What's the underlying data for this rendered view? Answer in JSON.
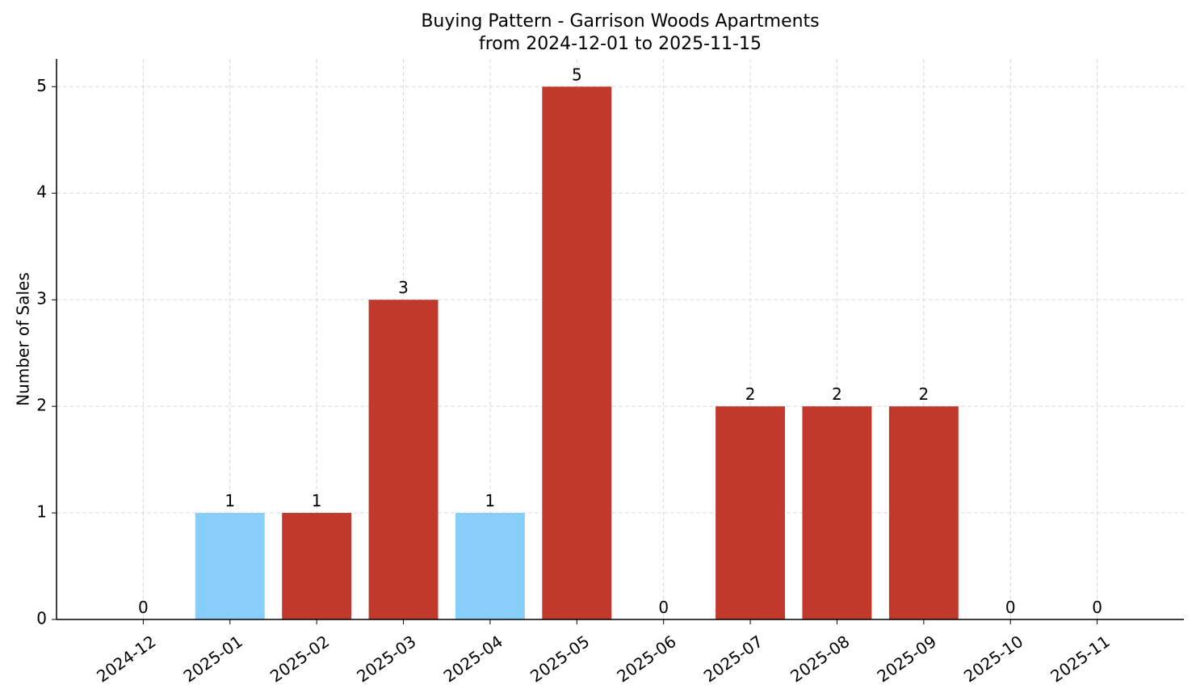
{
  "chart_data": {
    "type": "bar",
    "title": "Buying Pattern - Garrison Woods Apartments",
    "subtitle": "from 2024-12-01 to 2025-11-15",
    "y_label": "Number of Sales",
    "categories": [
      "2024-12",
      "2025-01",
      "2025-02",
      "2025-03",
      "2025-04",
      "2025-05",
      "2025-06",
      "2025-07",
      "2025-08",
      "2025-09",
      "2025-10",
      "2025-11"
    ],
    "values": [
      0,
      1,
      1,
      3,
      1,
      5,
      0,
      2,
      2,
      2,
      0,
      0
    ],
    "colors": [
      "#c0392b",
      "#87cefa",
      "#c0392b",
      "#c0392b",
      "#87cefa",
      "#c0392b",
      "#c0392b",
      "#c0392b",
      "#c0392b",
      "#c0392b",
      "#c0392b",
      "#c0392b"
    ],
    "ylim": [
      0,
      5.26
    ],
    "yticks": [
      0,
      1,
      2,
      3,
      4,
      5
    ],
    "grid": true
  }
}
